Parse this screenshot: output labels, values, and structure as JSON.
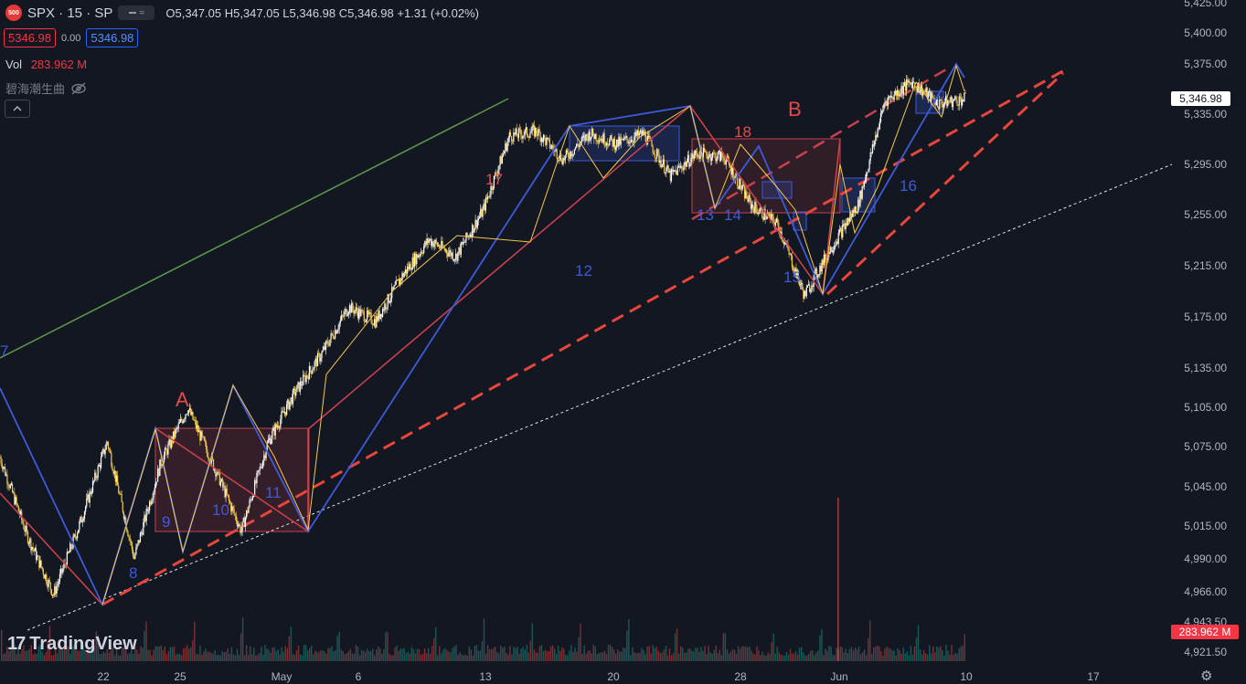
{
  "header": {
    "symbol_badge": "500",
    "symbol": "SPX · 15 · SP",
    "ohlc": "O5,347.05 H5,347.05 L5,346.98 C5,346.98 +1.31 (+0.02%)",
    "bid": "5346.98",
    "spread": "0.00",
    "ask": "5346.98"
  },
  "volume": {
    "label": "Vol",
    "value": "283.962 M"
  },
  "indicator": {
    "label": "碧海潮生曲"
  },
  "price_tag": "5,346.98",
  "volume_tag": "283.962 M",
  "branding": {
    "name": "TradingView",
    "mark": "17"
  },
  "colors": {
    "background": "#131722",
    "up_candle": "#ffffff",
    "down_candle": "#f7c948",
    "wave_red": "#c8414b",
    "wave_blue": "#3d5bd9",
    "channel_dash": "#e8463a",
    "trend_green": "#5a9a4a",
    "volume_up": "#26a69a",
    "volume_down": "#ef5350"
  },
  "chart_data": {
    "type": "candlestick",
    "title": "SPX · 15 · SP",
    "price_axis": {
      "range": [
        4910,
        5425
      ],
      "ticks": [
        5425,
        5400,
        5375,
        5335,
        5295,
        5255,
        5215,
        5175,
        5135,
        5105,
        5075,
        5045,
        5015,
        4990,
        4966,
        4943.5,
        4921.5
      ],
      "tick_labels": [
        "5,425.00",
        "5,400.00",
        "5,375.00",
        "5,335.00",
        "5,295.00",
        "5,255.00",
        "5,215.00",
        "5,175.00",
        "5,135.00",
        "5,105.00",
        "5,075.00",
        "5,045.00",
        "5,015.00",
        "4,990.00",
        "4,966.00",
        "4,943.50",
        "4,921.50"
      ]
    },
    "time_axis": {
      "labels": [
        "22",
        "25",
        "May",
        "6",
        "13",
        "20",
        "28",
        "Jun",
        "10",
        "17"
      ]
    },
    "price_path": [
      [
        "Apr 18",
        5070
      ],
      [
        "Apr 19",
        5010
      ],
      [
        "Apr 22",
        4964
      ],
      [
        "Apr 23",
        5020
      ],
      [
        "Apr 24",
        5082
      ],
      [
        "Apr 25",
        4992
      ],
      [
        "Apr 26",
        5066
      ],
      [
        "Apr 29",
        5108
      ],
      [
        "Apr 30",
        5062
      ],
      [
        "May 1",
        5013
      ],
      [
        "May 2",
        5082
      ],
      [
        "May 3",
        5120
      ],
      [
        "May 6",
        5150
      ],
      [
        "May 7",
        5186
      ],
      [
        "May 8",
        5175
      ],
      [
        "May 9",
        5210
      ],
      [
        "May 10",
        5238
      ],
      [
        "May 13",
        5225
      ],
      [
        "May 14",
        5260
      ],
      [
        "May 15",
        5318
      ],
      [
        "May 16",
        5322
      ],
      [
        "May 17",
        5300
      ],
      [
        "May 20",
        5320
      ],
      [
        "May 21",
        5312
      ],
      [
        "May 22",
        5320
      ],
      [
        "May 23",
        5287
      ],
      [
        "May 24",
        5305
      ],
      [
        "May 28",
        5302
      ],
      [
        "May 29",
        5265
      ],
      [
        "May 30",
        5250
      ],
      [
        "May 31",
        5195
      ],
      [
        "Jun 3",
        5232
      ],
      [
        "Jun 4",
        5265
      ],
      [
        "Jun 5",
        5345
      ],
      [
        "Jun 6",
        5360
      ],
      [
        "Jun 7",
        5343
      ],
      [
        "Jun 10",
        5347
      ]
    ],
    "last_price": 5346.98,
    "annotations": {
      "letters": [
        "A",
        "B"
      ],
      "red_numbers": [
        "17",
        "18"
      ],
      "blue_numbers": [
        "7",
        "8",
        "9",
        "10",
        "11",
        "12",
        "13",
        "14",
        "15",
        "16"
      ]
    }
  }
}
